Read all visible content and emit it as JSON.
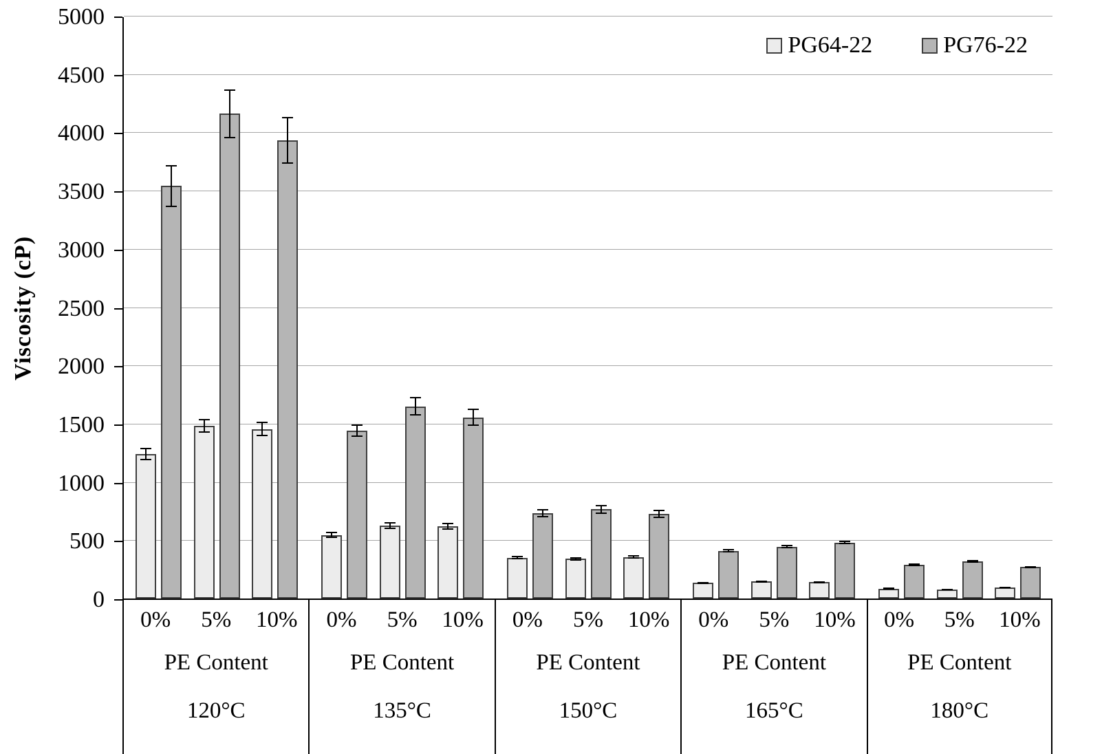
{
  "chart_data": {
    "type": "bar",
    "title": "",
    "ylabel": "Viscosity (cP)",
    "ylim": [
      0,
      5000
    ],
    "ytick_step": 500,
    "yticks": [
      0,
      500,
      1000,
      1500,
      2000,
      2500,
      3000,
      3500,
      4000,
      4500,
      5000
    ],
    "grid": true,
    "legend_position": "top-right",
    "gridline_color": "#a6a6a6",
    "bar_border_color": "#3f3f3f",
    "error_bars": true,
    "groups": [
      {
        "temperature": "120°C",
        "axis_label": "PE Content",
        "categories": [
          "0%",
          "5%",
          "10%"
        ]
      },
      {
        "temperature": "135°C",
        "axis_label": "PE Content",
        "categories": [
          "0%",
          "5%",
          "10%"
        ]
      },
      {
        "temperature": "150°C",
        "axis_label": "PE Content",
        "categories": [
          "0%",
          "5%",
          "10%"
        ]
      },
      {
        "temperature": "165°C",
        "axis_label": "PE Content",
        "categories": [
          "0%",
          "5%",
          "10%"
        ]
      },
      {
        "temperature": "180°C",
        "axis_label": "PE Content",
        "categories": [
          "0%",
          "5%",
          "10%"
        ]
      }
    ],
    "series": [
      {
        "name": "PG64-22",
        "fill": "#ececec",
        "values": [
          [
            1240,
            1480,
            1455
          ],
          [
            545,
            625,
            620
          ],
          [
            350,
            340,
            355
          ],
          [
            135,
            145,
            140
          ],
          [
            85,
            75,
            95
          ]
        ],
        "errors": [
          [
            55,
            60,
            60
          ],
          [
            25,
            30,
            30
          ],
          [
            15,
            15,
            15
          ],
          [
            8,
            8,
            10
          ],
          [
            5,
            5,
            5
          ]
        ]
      },
      {
        "name": "PG76-22",
        "fill": "#b5b5b5",
        "values": [
          [
            3540,
            4160,
            3930
          ],
          [
            1440,
            1650,
            1555
          ],
          [
            730,
            765,
            725
          ],
          [
            410,
            445,
            480
          ],
          [
            290,
            320,
            270
          ]
        ],
        "errors": [
          [
            180,
            210,
            200
          ],
          [
            55,
            80,
            75
          ],
          [
            35,
            40,
            35
          ],
          [
            15,
            15,
            15
          ],
          [
            10,
            10,
            8
          ]
        ]
      }
    ]
  }
}
